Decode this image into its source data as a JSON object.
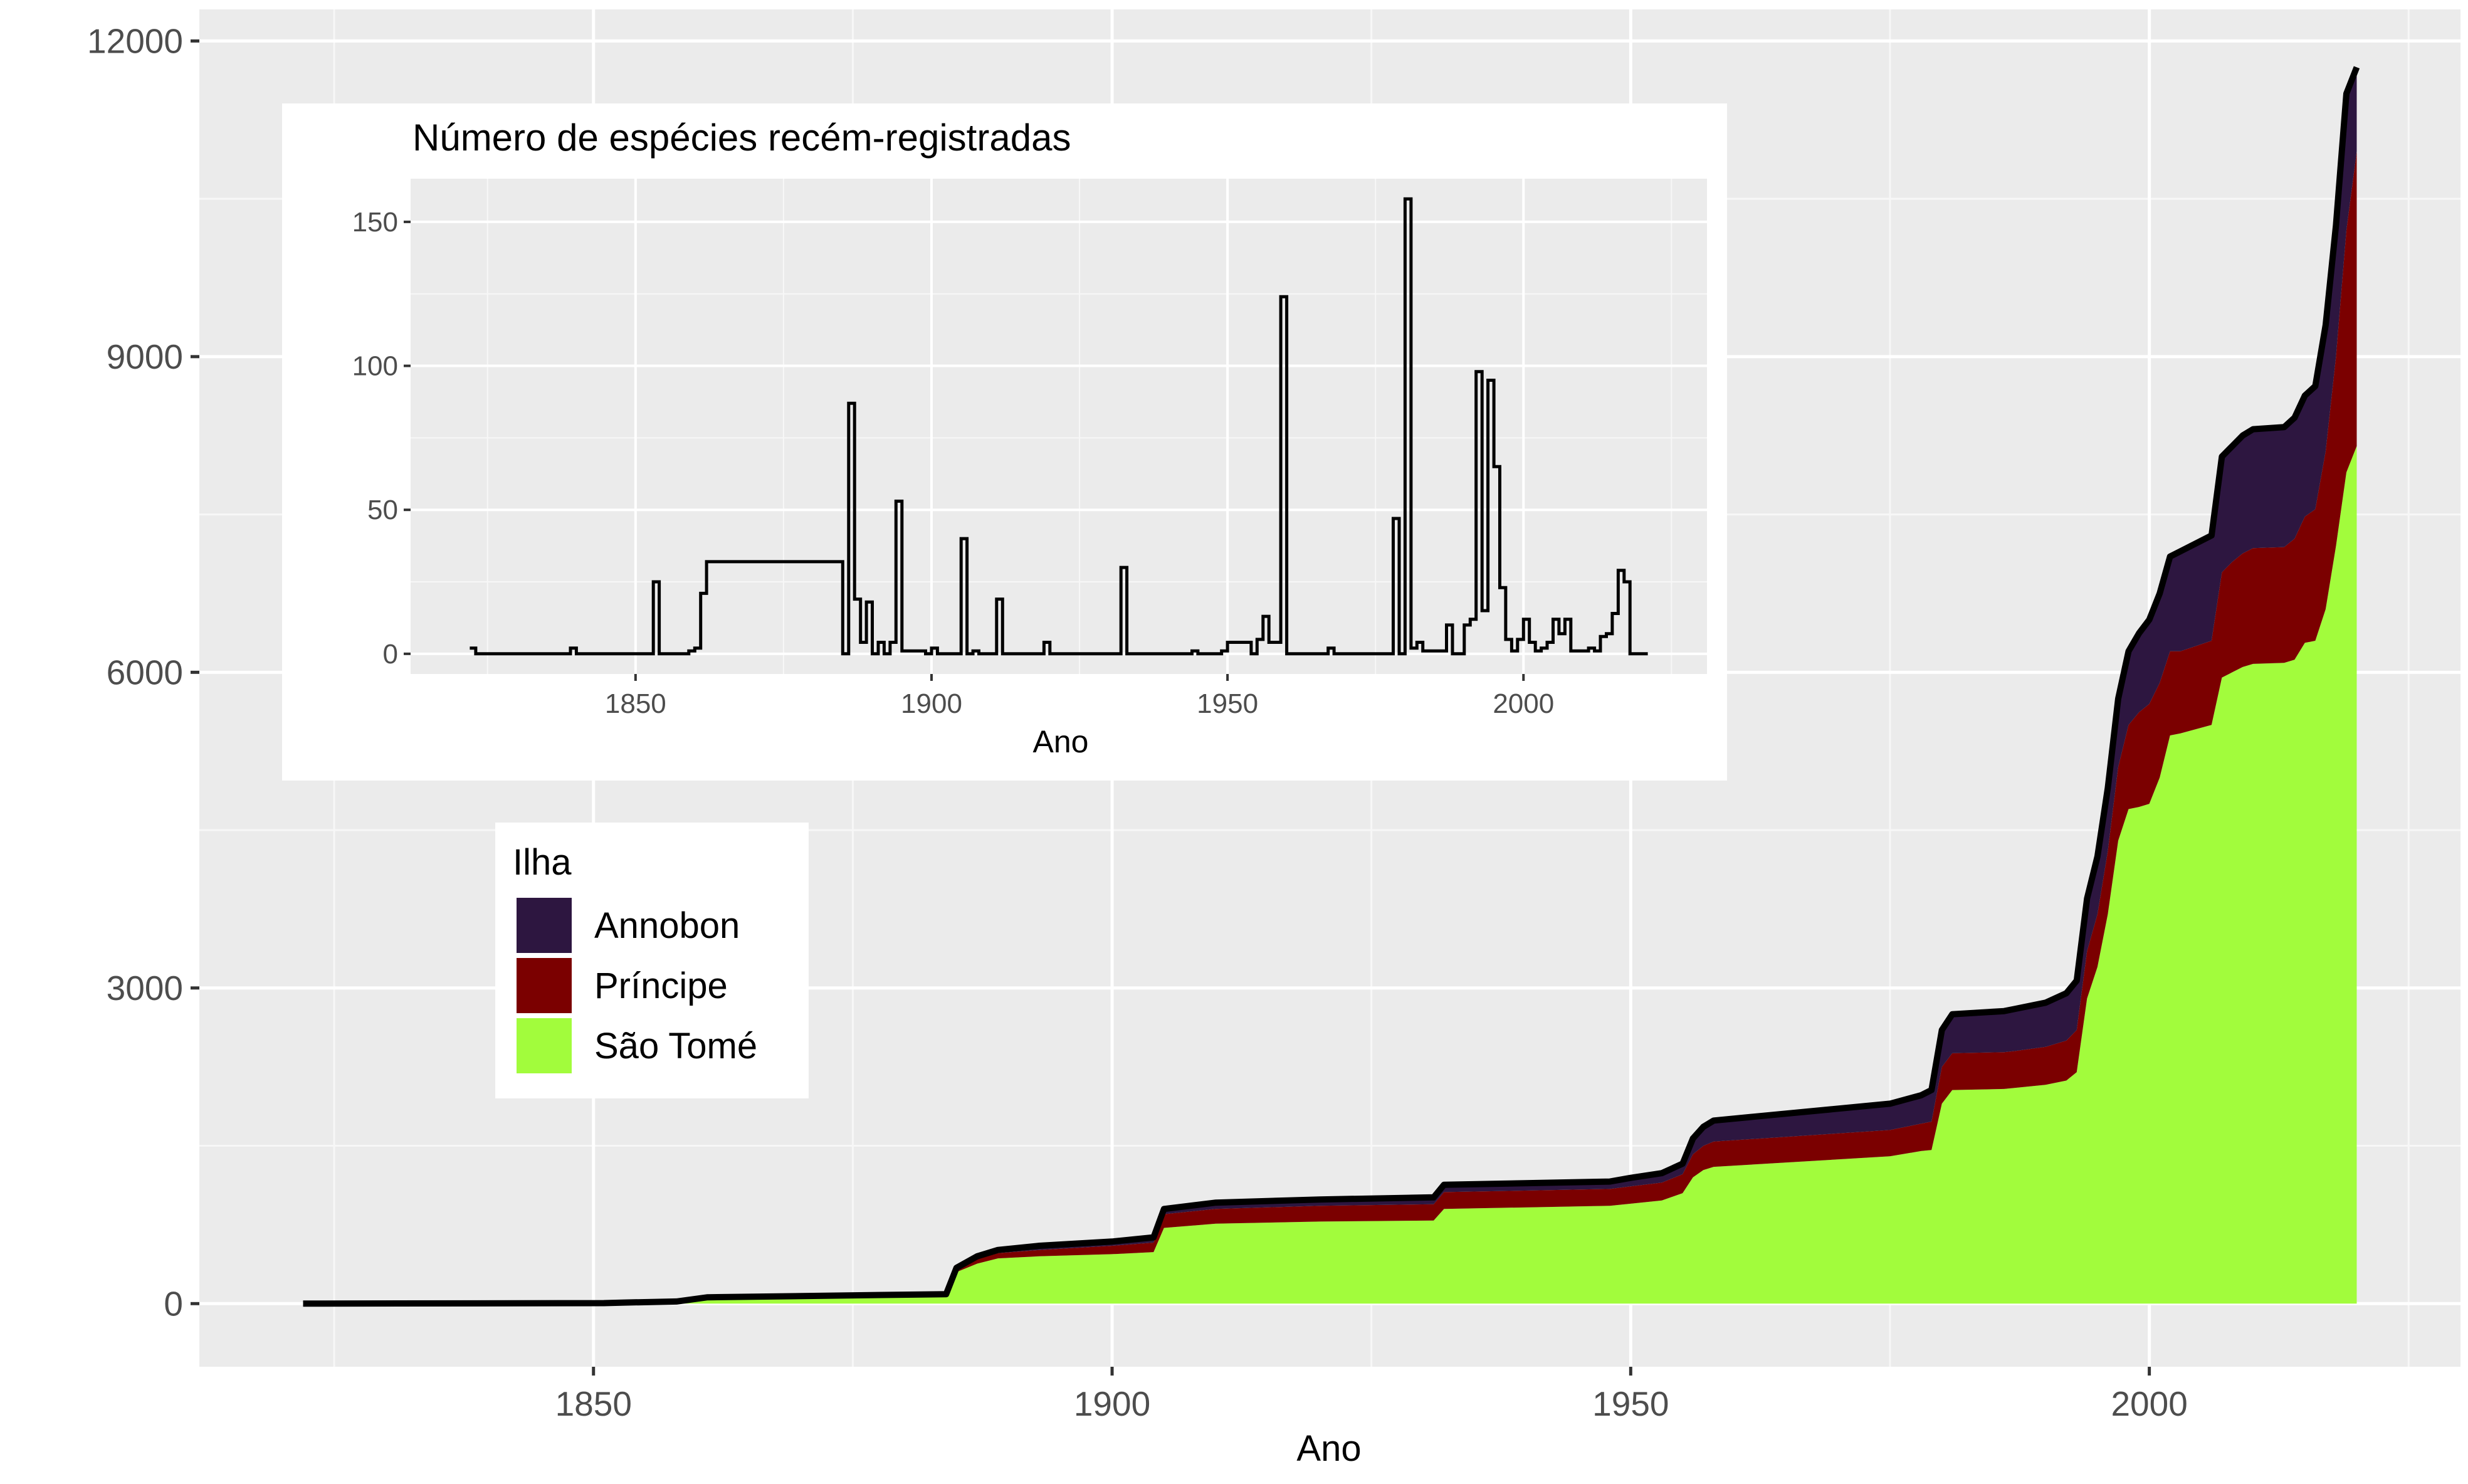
{
  "chart_data": [
    {
      "type": "area",
      "stacked": true,
      "xlabel": "Ano",
      "ylabel": "",
      "xlim": [
        1812,
        2030
      ],
      "ylim": [
        -600,
        12300
      ],
      "xticks": [
        1850,
        1900,
        1950,
        2000
      ],
      "yticks": [
        0,
        3000,
        6000,
        9000,
        12000
      ],
      "grid": true,
      "legend": {
        "title": "Ilha",
        "placement": "left",
        "entries": [
          {
            "name": "Annobon",
            "color": "#2D1640"
          },
          {
            "name": "Príncipe",
            "color": "#7B0000"
          },
          {
            "name": "São Tomé",
            "color": "#A2FC3C"
          }
        ]
      },
      "x": [
        1822,
        1851,
        1853,
        1858,
        1861,
        1884,
        1885,
        1887,
        1889,
        1893,
        1900,
        1904,
        1905,
        1910,
        1920,
        1931,
        1932,
        1948,
        1950,
        1953,
        1955,
        1956,
        1957,
        1958,
        1975,
        1978,
        1979,
        1980,
        1981,
        1986,
        1987,
        1990,
        1992,
        1993,
        1994,
        1995,
        1996,
        1997,
        1998,
        1999,
        2000,
        2001,
        2002,
        2003,
        2006,
        2007,
        2008,
        2009,
        2010,
        2013,
        2014,
        2015,
        2016,
        2017,
        2018,
        2019,
        2020
      ],
      "series": [
        {
          "name": "São Tomé",
          "values": [
            0,
            5,
            10,
            20,
            60,
            90,
            300,
            380,
            430,
            450,
            470,
            490,
            720,
            760,
            780,
            790,
            900,
            930,
            950,
            980,
            1050,
            1200,
            1270,
            1300,
            1400,
            1450,
            1460,
            1900,
            2030,
            2040,
            2050,
            2080,
            2120,
            2200,
            2900,
            3200,
            3700,
            4400,
            4700,
            4720,
            4750,
            5000,
            5400,
            5420,
            5500,
            5950,
            6000,
            6050,
            6080,
            6090,
            6120,
            6280,
            6300,
            6600,
            7200,
            7900,
            8150
          ]
        },
        {
          "name": "Príncipe",
          "values": [
            0,
            0,
            0,
            0,
            0,
            0,
            20,
            40,
            50,
            60,
            80,
            90,
            130,
            140,
            150,
            155,
            160,
            160,
            165,
            170,
            180,
            220,
            230,
            240,
            250,
            260,
            270,
            350,
            350,
            350,
            350,
            360,
            380,
            400,
            450,
            500,
            600,
            700,
            800,
            900,
            950,
            900,
            800,
            780,
            800,
            1000,
            1050,
            1080,
            1100,
            1100,
            1150,
            1200,
            1250,
            1500,
            1800,
            2300,
            2800
          ]
        },
        {
          "name": "Annobon",
          "values": [
            0,
            0,
            0,
            0,
            0,
            0,
            20,
            30,
            30,
            40,
            40,
            50,
            50,
            60,
            60,
            65,
            70,
            70,
            80,
            90,
            100,
            150,
            180,
            200,
            250,
            270,
            300,
            350,
            370,
            390,
            400,
            420,
            450,
            470,
            500,
            550,
            600,
            650,
            700,
            750,
            800,
            850,
            900,
            950,
            1000,
            1100,
            1100,
            1120,
            1130,
            1140,
            1150,
            1150,
            1170,
            1200,
            1250,
            1300,
            800
          ]
        }
      ]
    },
    {
      "type": "line",
      "step": true,
      "title": "Número de espécies recém-registradas",
      "xlabel": "Ano",
      "ylabel": "",
      "xlim": [
        1812,
        2031
      ],
      "ylim": [
        -7,
        165
      ],
      "xticks": [
        1850,
        1900,
        1950,
        2000
      ],
      "yticks": [
        0,
        50,
        100,
        150
      ],
      "grid": true,
      "x": [
        1822,
        1823,
        1839,
        1840,
        1853,
        1854,
        1859,
        1860,
        1861,
        1862,
        1885,
        1886,
        1887,
        1888,
        1889,
        1890,
        1891,
        1892,
        1893,
        1894,
        1895,
        1899,
        1900,
        1901,
        1905,
        1906,
        1907,
        1908,
        1910,
        1911,
        1912,
        1919,
        1920,
        1932,
        1933,
        1944,
        1945,
        1949,
        1950,
        1954,
        1955,
        1956,
        1957,
        1959,
        1960,
        1967,
        1968,
        1978,
        1979,
        1980,
        1981,
        1982,
        1983,
        1984,
        1987,
        1988,
        1990,
        1991,
        1992,
        1993,
        1994,
        1995,
        1996,
        1997,
        1998,
        1999,
        2000,
        2001,
        2002,
        2003,
        2004,
        2005,
        2006,
        2007,
        2008,
        2009,
        2010,
        2011,
        2012,
        2013,
        2014,
        2015,
        2016,
        2017,
        2018,
        2019,
        2020,
        2021
      ],
      "values": [
        2,
        0,
        2,
        0,
        25,
        0,
        1,
        2,
        21,
        32,
        0,
        87,
        19,
        4,
        18,
        0,
        4,
        0,
        4,
        53,
        1,
        0,
        2,
        0,
        40,
        0,
        1,
        0,
        0,
        19,
        0,
        4,
        0,
        30,
        0,
        1,
        0,
        1,
        4,
        0,
        5,
        13,
        4,
        124,
        0,
        2,
        0,
        47,
        0,
        158,
        2,
        4,
        1,
        1,
        10,
        0,
        10,
        12,
        98,
        15,
        95,
        65,
        23,
        5,
        1,
        5,
        12,
        4,
        1,
        2,
        4,
        12,
        7,
        12,
        1,
        1,
        1,
        2,
        1,
        6,
        7,
        14,
        29,
        25,
        0,
        0,
        0,
        0
      ]
    }
  ]
}
